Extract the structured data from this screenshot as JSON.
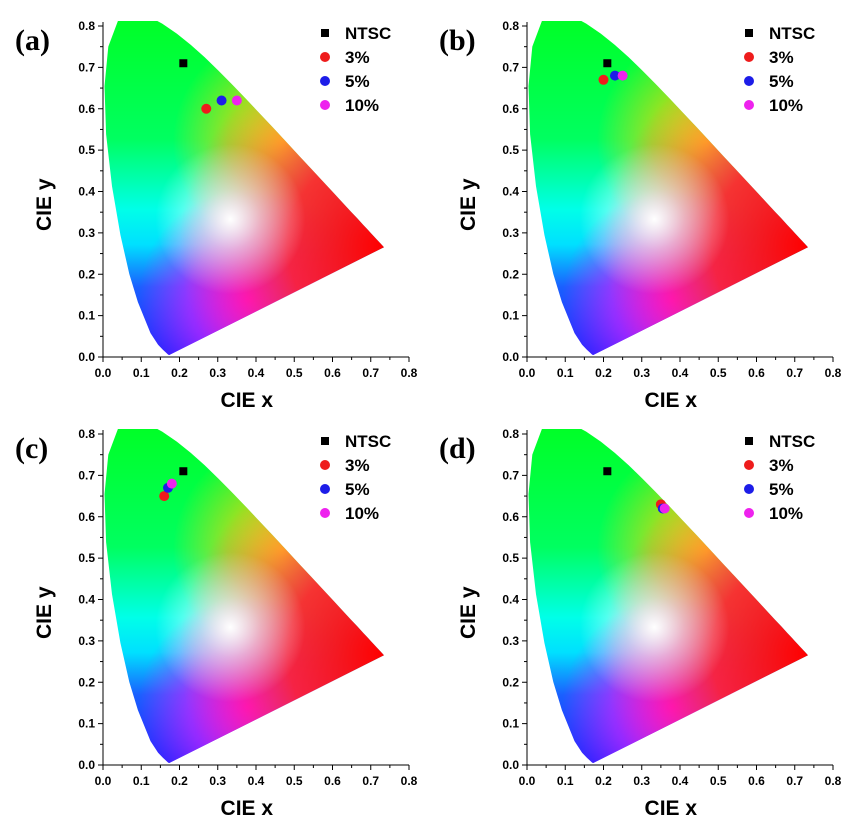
{
  "chart_data": [
    {
      "type": "scatter",
      "panel_label": "(a)",
      "xlabel": "CIE x",
      "ylabel": "CIE y",
      "xlim": [
        0.0,
        0.8
      ],
      "ylim": [
        0.0,
        0.8
      ],
      "xticks": [
        "0.0",
        "0.1",
        "0.2",
        "0.3",
        "0.4",
        "0.5",
        "0.6",
        "0.7",
        "0.8"
      ],
      "yticks": [
        "0.0",
        "0.1",
        "0.2",
        "0.3",
        "0.4",
        "0.5",
        "0.6",
        "0.7",
        "0.8"
      ],
      "legend_placement": "top-right",
      "series": [
        {
          "name": "NTSC",
          "marker": "square",
          "color": "#000000",
          "x": [
            0.21
          ],
          "y": [
            0.71
          ]
        },
        {
          "name": "3%",
          "marker": "circle",
          "color": "#ee1c1c",
          "x": [
            0.27
          ],
          "y": [
            0.6
          ]
        },
        {
          "name": "5%",
          "marker": "circle",
          "color": "#1d1de8",
          "x": [
            0.31
          ],
          "y": [
            0.62
          ]
        },
        {
          "name": "10%",
          "marker": "circle",
          "color": "#ee22ee",
          "x": [
            0.35
          ],
          "y": [
            0.62
          ]
        }
      ]
    },
    {
      "type": "scatter",
      "panel_label": "(b)",
      "xlabel": "CIE x",
      "ylabel": "CIE y",
      "xlim": [
        0.0,
        0.8
      ],
      "ylim": [
        0.0,
        0.8
      ],
      "xticks": [
        "0.0",
        "0.1",
        "0.2",
        "0.3",
        "0.4",
        "0.5",
        "0.6",
        "0.7",
        "0.8"
      ],
      "yticks": [
        "0.0",
        "0.1",
        "0.2",
        "0.3",
        "0.4",
        "0.5",
        "0.6",
        "0.7",
        "0.8"
      ],
      "legend_placement": "top-right",
      "series": [
        {
          "name": "NTSC",
          "marker": "square",
          "color": "#000000",
          "x": [
            0.21
          ],
          "y": [
            0.71
          ]
        },
        {
          "name": "3%",
          "marker": "circle",
          "color": "#ee1c1c",
          "x": [
            0.2
          ],
          "y": [
            0.67
          ]
        },
        {
          "name": "5%",
          "marker": "circle",
          "color": "#1d1de8",
          "x": [
            0.23
          ],
          "y": [
            0.68
          ]
        },
        {
          "name": "10%",
          "marker": "circle",
          "color": "#ee22ee",
          "x": [
            0.25
          ],
          "y": [
            0.68
          ]
        }
      ]
    },
    {
      "type": "scatter",
      "panel_label": "(c)",
      "xlabel": "CIE x",
      "ylabel": "CIE y",
      "xlim": [
        0.0,
        0.8
      ],
      "ylim": [
        0.0,
        0.8
      ],
      "xticks": [
        "0.0",
        "0.1",
        "0.2",
        "0.3",
        "0.4",
        "0.5",
        "0.6",
        "0.7",
        "0.8"
      ],
      "yticks": [
        "0.0",
        "0.1",
        "0.2",
        "0.3",
        "0.4",
        "0.5",
        "0.6",
        "0.7",
        "0.8"
      ],
      "legend_placement": "top-right",
      "series": [
        {
          "name": "NTSC",
          "marker": "square",
          "color": "#000000",
          "x": [
            0.21
          ],
          "y": [
            0.71
          ]
        },
        {
          "name": "3%",
          "marker": "circle",
          "color": "#ee1c1c",
          "x": [
            0.16
          ],
          "y": [
            0.65
          ]
        },
        {
          "name": "5%",
          "marker": "circle",
          "color": "#1d1de8",
          "x": [
            0.17
          ],
          "y": [
            0.67
          ]
        },
        {
          "name": "10%",
          "marker": "circle",
          "color": "#ee22ee",
          "x": [
            0.18
          ],
          "y": [
            0.68
          ]
        }
      ]
    },
    {
      "type": "scatter",
      "panel_label": "(d)",
      "xlabel": "CIE x",
      "ylabel": "CIE y",
      "xlim": [
        0.0,
        0.8
      ],
      "ylim": [
        0.0,
        0.8
      ],
      "xticks": [
        "0.0",
        "0.1",
        "0.2",
        "0.3",
        "0.4",
        "0.5",
        "0.6",
        "0.7",
        "0.8"
      ],
      "yticks": [
        "0.0",
        "0.1",
        "0.2",
        "0.3",
        "0.4",
        "0.5",
        "0.6",
        "0.7",
        "0.8"
      ],
      "legend_placement": "top-right",
      "series": [
        {
          "name": "NTSC",
          "marker": "square",
          "color": "#000000",
          "x": [
            0.21
          ],
          "y": [
            0.71
          ]
        },
        {
          "name": "3%",
          "marker": "circle",
          "color": "#ee1c1c",
          "x": [
            0.35
          ],
          "y": [
            0.63
          ]
        },
        {
          "name": "5%",
          "marker": "circle",
          "color": "#1d1de8",
          "x": [
            0.355
          ],
          "y": [
            0.62
          ]
        },
        {
          "name": "10%",
          "marker": "circle",
          "color": "#ee22ee",
          "x": [
            0.36
          ],
          "y": [
            0.62
          ]
        }
      ]
    }
  ]
}
